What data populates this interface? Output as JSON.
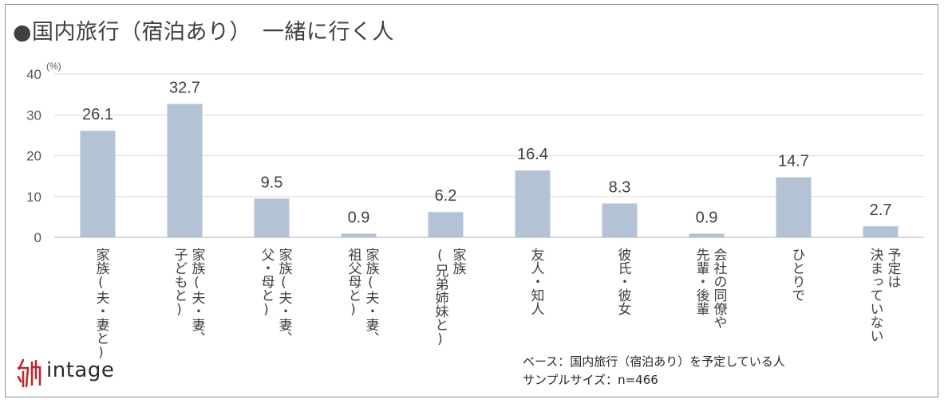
{
  "title": "●国内旅行（宿泊あり）　一緒に行く人",
  "chart_data": {
    "type": "bar",
    "unit_label": "(%)",
    "ylim": [
      0,
      40
    ],
    "yticks": [
      0,
      10,
      20,
      30,
      40
    ],
    "grid": true,
    "categories": [
      "家族(夫・妻と)",
      "家族(夫・妻、\n子どもと)",
      "家族(夫・妻、\n父・母と)",
      "家族(夫・妻、\n祖父母と)",
      "家族\n(兄弟姉妹と)",
      "友人・知人",
      "彼氏・彼女",
      "会社の同僚や\n先輩・後輩",
      "ひとりで",
      "予定は\n決まっていない"
    ],
    "values": [
      26.1,
      32.7,
      9.5,
      0.9,
      6.2,
      16.4,
      8.3,
      0.9,
      14.7,
      2.7
    ],
    "value_labels": [
      "26.1",
      "32.7",
      "9.5",
      "0.9",
      "6.2",
      "16.4",
      "8.3",
      "0.9",
      "14.7",
      "2.7"
    ],
    "bar_color": "#b4c2d5"
  },
  "logo": {
    "text": "intage",
    "mark_color": "#c0282d"
  },
  "note": {
    "base": "ベース：国内旅行（宿泊あり）を予定している人",
    "sample": "サンプルサイズ：n=466"
  }
}
